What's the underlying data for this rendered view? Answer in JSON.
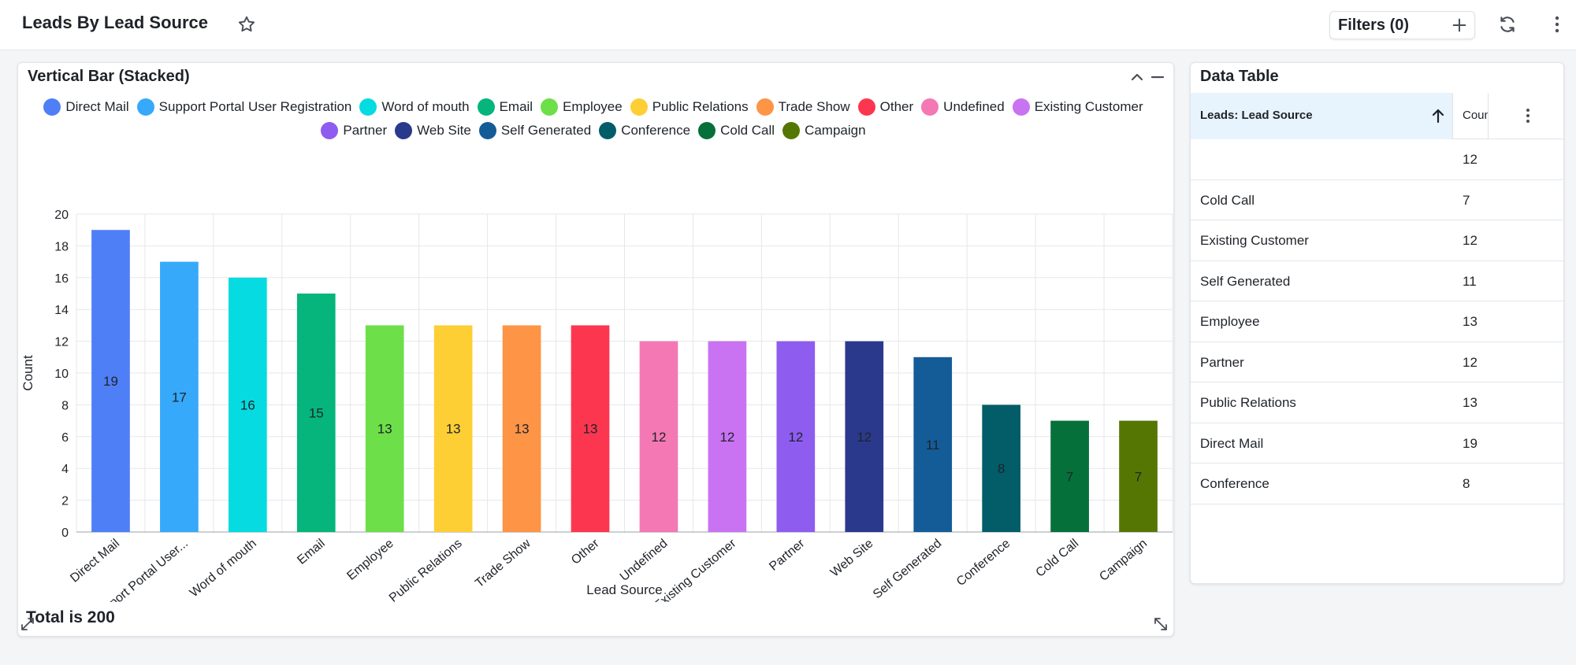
{
  "header": {
    "title": "Leads By Lead Source",
    "filters_label": "Filters (0)"
  },
  "chart_panel": {
    "title": "Vertical Bar (Stacked)",
    "total_label": "Total is 200"
  },
  "chart_data": {
    "type": "bar",
    "xlabel": "Lead Source",
    "ylabel": "Count",
    "ylim": [
      0,
      20
    ],
    "yticks": [
      0,
      2,
      4,
      6,
      8,
      10,
      12,
      14,
      16,
      18,
      20
    ],
    "grid": true,
    "legend_position": "top",
    "categories": [
      "Direct Mail",
      "Support Portal User Registration",
      "Word of mouth",
      "Email",
      "Employee",
      "Public Relations",
      "Trade Show",
      "Other",
      "Undefined",
      "Existing Customer",
      "Partner",
      "Web Site",
      "Self Generated",
      "Conference",
      "Cold Call",
      "Campaign"
    ],
    "tick_labels": [
      "Direct Mail",
      "Support Portal User...",
      "Word of mouth",
      "Email",
      "Employee",
      "Public Relations",
      "Trade Show",
      "Other",
      "Undefined",
      "Existing Customer",
      "Partner",
      "Web Site",
      "Self Generated",
      "Conference",
      "Cold Call",
      "Campaign"
    ],
    "values": [
      19,
      17,
      16,
      15,
      13,
      13,
      13,
      13,
      12,
      12,
      12,
      12,
      11,
      8,
      7,
      7
    ],
    "colors": [
      "#4f7ff7",
      "#36a9fa",
      "#05dbe0",
      "#05b57b",
      "#6ddf48",
      "#fece35",
      "#fd9446",
      "#fd3650",
      "#f478b3",
      "#c972f2",
      "#8f5cf0",
      "#2b398c",
      "#145c97",
      "#025d69",
      "#05703a",
      "#567603"
    ]
  },
  "table": {
    "title": "Data Table",
    "col_source": "Leads: Lead Source",
    "col_count": "Count",
    "rows": [
      {
        "source": "",
        "count": "12"
      },
      {
        "source": "Cold Call",
        "count": "7"
      },
      {
        "source": "Existing Customer",
        "count": "12"
      },
      {
        "source": "Self Generated",
        "count": "11"
      },
      {
        "source": "Employee",
        "count": "13"
      },
      {
        "source": "Partner",
        "count": "12"
      },
      {
        "source": "Public Relations",
        "count": "13"
      },
      {
        "source": "Direct Mail",
        "count": "19"
      },
      {
        "source": "Conference",
        "count": "8"
      }
    ]
  },
  "icons": {
    "favorite": "star-icon",
    "add_filter": "plus-icon",
    "refresh": "refresh-icon",
    "more": "kebab-icon",
    "collapse": "chevron-up-icon",
    "minimize": "minus-icon",
    "sort": "arrow-up-icon",
    "expand": "expand-icon"
  }
}
